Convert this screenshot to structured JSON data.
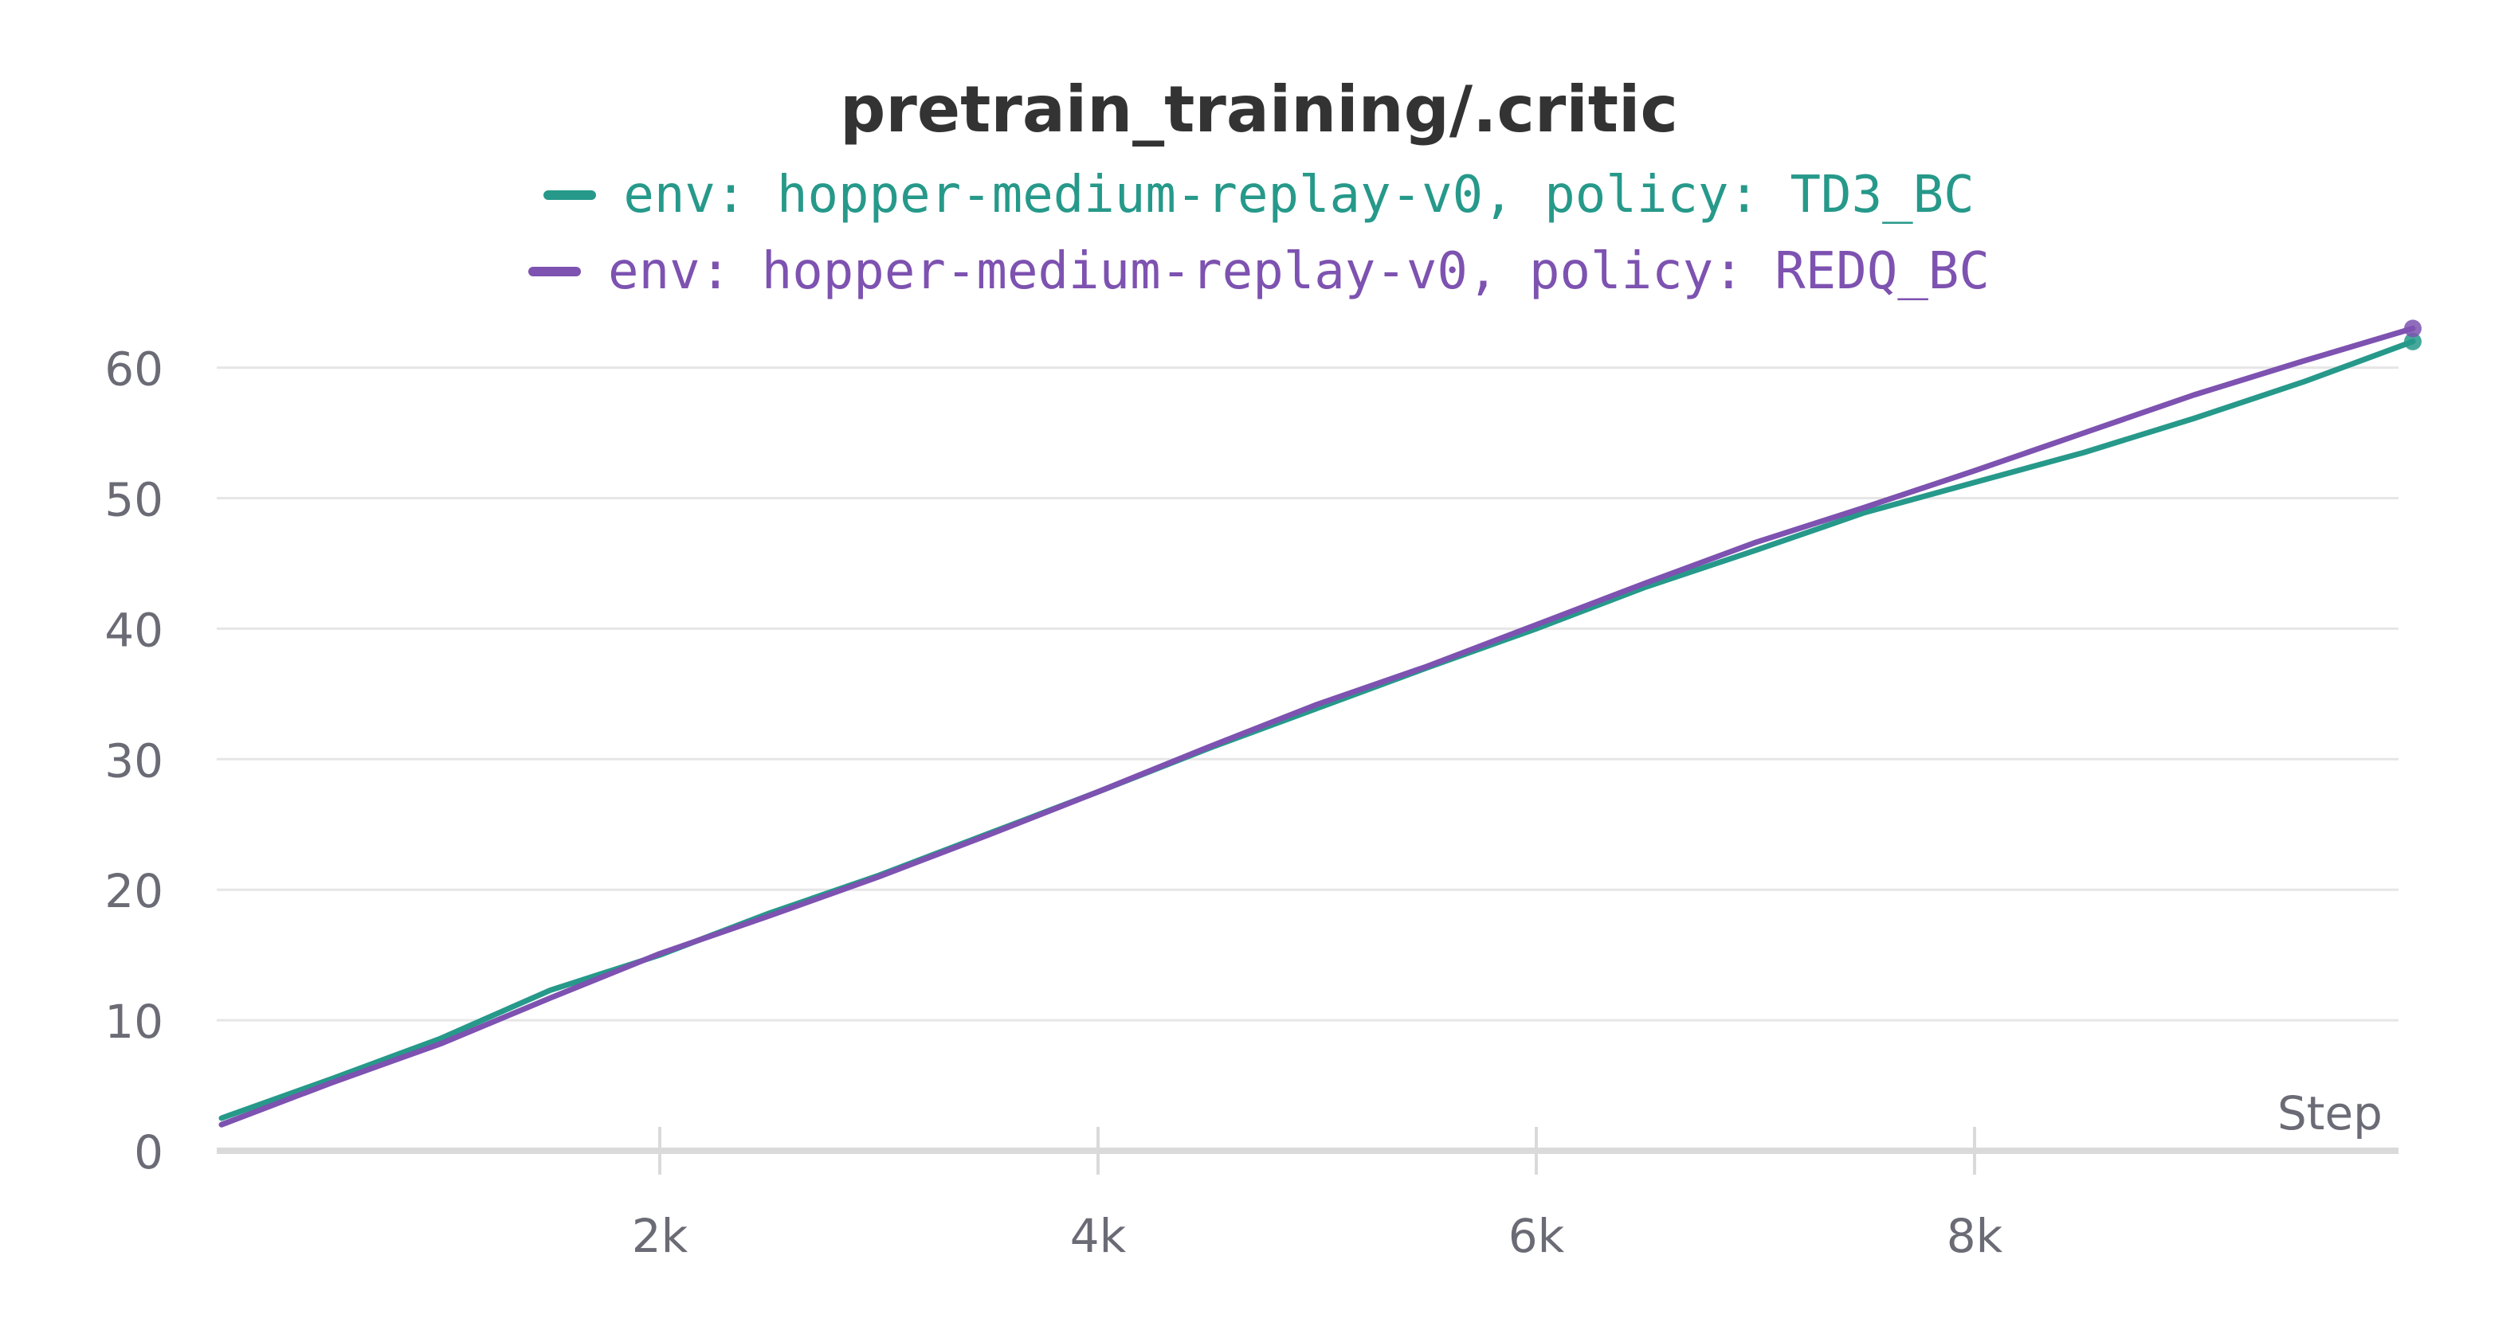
{
  "chart_data": {
    "type": "line",
    "title": "pretrain_training/.critic",
    "xlabel": "Step",
    "ylabel": "",
    "xlim": [
      0,
      10000
    ],
    "ylim": [
      0,
      65
    ],
    "x_ticks": [
      {
        "value": 2000,
        "label": "2k"
      },
      {
        "value": 4000,
        "label": "4k"
      },
      {
        "value": 6000,
        "label": "6k"
      },
      {
        "value": 8000,
        "label": "8k"
      }
    ],
    "y_ticks": [
      {
        "value": 0,
        "label": "0"
      },
      {
        "value": 10,
        "label": "10"
      },
      {
        "value": 20,
        "label": "20"
      },
      {
        "value": 30,
        "label": "30"
      },
      {
        "value": 40,
        "label": "40"
      },
      {
        "value": 50,
        "label": "50"
      },
      {
        "value": 60,
        "label": "60"
      }
    ],
    "grid": "horizontal",
    "legend_position": "top-center",
    "series": [
      {
        "name": "env: hopper-medium-replay-v0, policy: TD3_BC",
        "color": "#26998a",
        "x": [
          0,
          500,
          1000,
          1500,
          2000,
          2500,
          3000,
          3500,
          4000,
          4500,
          5000,
          5500,
          6000,
          6500,
          7000,
          7500,
          8000,
          8500,
          9000,
          9500,
          10000
        ],
        "y": [
          2.5,
          5.5,
          8.6,
          12.3,
          15.0,
          18.2,
          21.1,
          24.3,
          27.5,
          30.8,
          33.9,
          37.0,
          40.0,
          43.2,
          46.0,
          48.9,
          51.2,
          53.5,
          56.1,
          58.9,
          62.0
        ]
      },
      {
        "name": "env: hopper-medium-replay-v0, policy: REDQ_BC",
        "color": "#7d52b0",
        "x": [
          0,
          500,
          1000,
          1500,
          2000,
          2500,
          3000,
          3500,
          4000,
          4500,
          5000,
          5500,
          6000,
          6500,
          7000,
          7500,
          8000,
          8500,
          9000,
          9500,
          10000
        ],
        "y": [
          2.0,
          5.2,
          8.2,
          11.7,
          15.1,
          18.0,
          21.0,
          24.2,
          27.5,
          30.9,
          34.2,
          37.1,
          40.3,
          43.5,
          46.6,
          49.3,
          52.1,
          55.0,
          57.9,
          60.5,
          63.0
        ]
      }
    ]
  }
}
